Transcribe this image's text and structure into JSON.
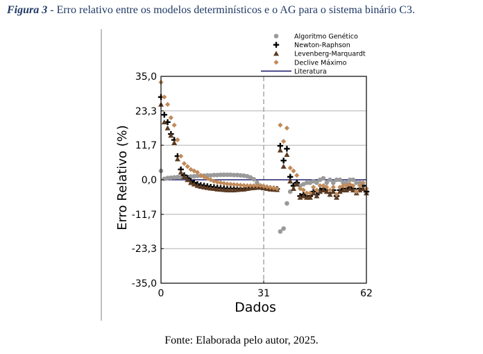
{
  "caption": {
    "label": "Figura 3",
    "text": " - Erro relativo entre os modelos determinísticos e o AG para o sistema binário C3."
  },
  "source": "Fonte: Elaborada pelo autor, 2025.",
  "chart_data": {
    "type": "scatter",
    "xlabel": "Dados",
    "ylabel": "Erro Relativo (%)",
    "xlim": [
      0,
      62
    ],
    "ylim": [
      -35,
      35
    ],
    "xticks": [
      "0",
      "31",
      "62"
    ],
    "yticks": [
      "35,0",
      "23,3",
      "11,7",
      "0,0",
      "-11,7",
      "-23,3",
      "-35,0"
    ],
    "ytick_values": [
      35,
      23.3,
      11.7,
      0,
      -11.7,
      -23.3,
      -35
    ],
    "grid": "horizontal",
    "legend_position": "top-right",
    "vline_x": 31,
    "series": [
      {
        "name": "Algoritmo Genético",
        "marker": "circle",
        "color": "#9a9a9a",
        "x": [
          0,
          1,
          2,
          3,
          4,
          5,
          6,
          7,
          8,
          9,
          10,
          11,
          12,
          13,
          14,
          15,
          16,
          17,
          18,
          19,
          20,
          21,
          22,
          23,
          24,
          25,
          26,
          27,
          28,
          29,
          30,
          31,
          32,
          33,
          34,
          35,
          36,
          37,
          38,
          39,
          40,
          41,
          42,
          43,
          44,
          45,
          46,
          47,
          48,
          49,
          50,
          51,
          52,
          53,
          54,
          55,
          56,
          57,
          58,
          59,
          60,
          61,
          62
        ],
        "y": [
          3,
          0.3,
          0.6,
          0.7,
          0.8,
          0.9,
          0.9,
          1,
          1,
          1.1,
          1.2,
          1.3,
          1.4,
          1.4,
          1.5,
          1.5,
          1.6,
          1.6,
          1.7,
          1.7,
          1.7,
          1.7,
          1.6,
          1.6,
          1.5,
          1.4,
          1.2,
          0.8,
          0.2,
          -1,
          -2,
          -2.5,
          -2.8,
          -3,
          -3,
          -3,
          -17.5,
          -16.5,
          -8,
          -4,
          -2,
          -1,
          -2,
          -1.5,
          -1,
          -1,
          -0.5,
          -1,
          0,
          0.5,
          -1,
          0,
          -1,
          0,
          0,
          -1,
          -1,
          0,
          0,
          -1,
          -1,
          -2,
          -4
        ]
      },
      {
        "name": "Newton-Raphson",
        "marker": "plus",
        "color": "#000000",
        "x": [
          0,
          1,
          2,
          3,
          4,
          5,
          6,
          7,
          8,
          9,
          10,
          11,
          12,
          13,
          14,
          15,
          16,
          17,
          18,
          19,
          20,
          21,
          22,
          23,
          24,
          25,
          26,
          27,
          28,
          29,
          30,
          31,
          32,
          33,
          34,
          35,
          36,
          37,
          38,
          39,
          40,
          41,
          42,
          43,
          44,
          45,
          46,
          47,
          48,
          49,
          50,
          51,
          52,
          53,
          54,
          55,
          56,
          57,
          58,
          59,
          60,
          61,
          62
        ],
        "y": [
          28,
          22,
          19.5,
          15.5,
          13.5,
          8,
          3.5,
          1.5,
          0.5,
          -0.5,
          -1,
          -1.5,
          -1.8,
          -2,
          -2.2,
          -2.4,
          -2.5,
          -2.7,
          -2.8,
          -2.9,
          -3,
          -3,
          -3,
          -3,
          -3,
          -3,
          -2.8,
          -2.6,
          -2.5,
          -2.4,
          -2.4,
          -2.5,
          -2.7,
          -2.9,
          -3,
          -3.1,
          11.5,
          6.5,
          10.5,
          1,
          -2,
          -1,
          -5.5,
          -5,
          -5.5,
          -5.5,
          -4,
          -5,
          -3.5,
          -3,
          -3.5,
          -4.5,
          -3.5,
          -5.5,
          -3.5,
          -3,
          -3,
          -2.5,
          -3,
          -4,
          -3,
          -2,
          -4
        ]
      },
      {
        "name": "Levenberg-Marquardt",
        "marker": "triangle",
        "color": "#5b3a22",
        "x": [
          0,
          1,
          2,
          3,
          4,
          5,
          6,
          7,
          8,
          9,
          10,
          11,
          12,
          13,
          14,
          15,
          16,
          17,
          18,
          19,
          20,
          21,
          22,
          23,
          24,
          25,
          26,
          27,
          28,
          29,
          30,
          31,
          32,
          33,
          34,
          35,
          36,
          37,
          38,
          39,
          40,
          41,
          42,
          43,
          44,
          45,
          46,
          47,
          48,
          49,
          50,
          51,
          52,
          53,
          54,
          55,
          56,
          57,
          58,
          59,
          60,
          61,
          62
        ],
        "y": [
          25.5,
          19.5,
          17.5,
          15,
          12.5,
          7,
          2.5,
          1,
          0,
          -1,
          -1.5,
          -2,
          -2.3,
          -2.5,
          -2.7,
          -2.9,
          -3,
          -3.2,
          -3.3,
          -3.4,
          -3.5,
          -3.5,
          -3.5,
          -3.4,
          -3.3,
          -3.2,
          -3,
          -2.8,
          -2.7,
          -2.6,
          -2.6,
          -2.8,
          -3,
          -3.2,
          -3.3,
          -3.4,
          10,
          4.5,
          8.5,
          -0.5,
          -3,
          -1.5,
          -6,
          -5.5,
          -6,
          -6,
          -4.5,
          -5.5,
          -4,
          -3.5,
          -4,
          -5,
          -4,
          -6,
          -4,
          -3.5,
          -3.5,
          -3,
          -3.5,
          -4.5,
          -3.5,
          -3,
          -4.5
        ]
      },
      {
        "name": "Declive Máximo",
        "marker": "diamond",
        "color": "#c08a5a",
        "x": [
          0,
          1,
          2,
          3,
          4,
          5,
          6,
          7,
          8,
          9,
          10,
          11,
          12,
          13,
          14,
          15,
          16,
          17,
          18,
          19,
          20,
          21,
          22,
          23,
          24,
          25,
          26,
          27,
          28,
          29,
          30,
          31,
          32,
          33,
          34,
          35,
          36,
          37,
          38,
          39,
          40,
          41,
          42,
          43,
          44,
          45,
          46,
          47,
          48,
          49,
          50,
          51,
          52,
          53,
          54,
          55,
          56,
          57,
          58,
          59,
          60,
          61,
          62
        ],
        "y": [
          33,
          28,
          25.5,
          21,
          18.5,
          13.5,
          8,
          5.5,
          4.5,
          3.5,
          3,
          2.5,
          1.5,
          1,
          0.5,
          0,
          -0.5,
          -0.8,
          -1,
          -1.2,
          -1.4,
          -1.5,
          -1.6,
          -1.7,
          -1.8,
          -1.9,
          -2,
          -2,
          -2,
          -2,
          -2,
          -2.2,
          -2.4,
          -2.6,
          -2.8,
          -3,
          18.5,
          13,
          17.5,
          4,
          3,
          1.5,
          -3,
          -3.5,
          -4.5,
          -4.5,
          -2.5,
          -3.5,
          -2,
          -2,
          -2.5,
          -3.5,
          -2.5,
          -5,
          -2.5,
          -2,
          -2,
          -1.5,
          -2,
          -4,
          -2,
          -1,
          -3
        ]
      },
      {
        "name": "Literatura",
        "marker": "line",
        "color": "#1f1f6e",
        "x": [
          0,
          62
        ],
        "y": [
          0,
          0
        ]
      }
    ]
  }
}
